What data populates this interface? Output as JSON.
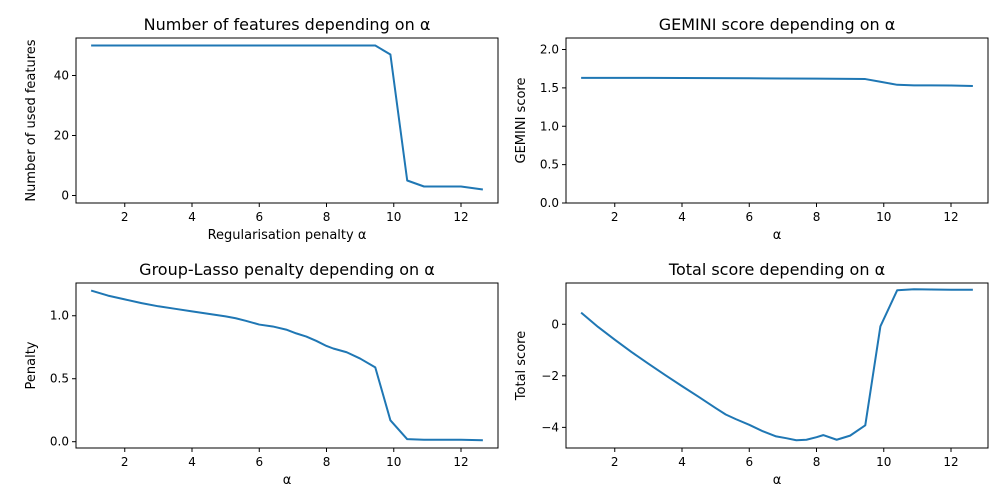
{
  "chart_data": [
    {
      "type": "line",
      "title": "Number of features depending on α",
      "xlabel": "Regularisation penalty α",
      "ylabel": "Number of used features",
      "xlim": [
        0.55,
        13.1
      ],
      "ylim": [
        -2.5,
        52.5
      ],
      "xticks": [
        2,
        4,
        6,
        8,
        10,
        12
      ],
      "yticks": [
        0,
        20,
        40
      ],
      "x": [
        1.0,
        1.5,
        2.0,
        2.5,
        3.0,
        3.5,
        4.0,
        4.5,
        5.0,
        5.5,
        6.0,
        6.5,
        7.0,
        7.5,
        8.0,
        8.5,
        9.0,
        9.45,
        9.9,
        10.4,
        10.9,
        11.4,
        12.0,
        12.65
      ],
      "series": [
        {
          "name": "",
          "values": [
            50,
            50,
            50,
            50,
            50,
            50,
            50,
            50,
            50,
            50,
            50,
            50,
            50,
            50,
            50,
            50,
            50,
            50,
            47,
            5,
            3,
            3,
            3,
            2
          ]
        }
      ]
    },
    {
      "type": "line",
      "title": "GEMINI score depending on α",
      "xlabel": "α",
      "ylabel": "GEMINI score",
      "xlim": [
        0.55,
        13.1
      ],
      "ylim": [
        0.0,
        2.15
      ],
      "xticks": [
        2,
        4,
        6,
        8,
        10,
        12
      ],
      "yticks": [
        0.0,
        0.5,
        1.0,
        1.5,
        2.0
      ],
      "yticklabels": [
        "0.0",
        "0.5",
        "1.0",
        "1.5",
        "2.0"
      ],
      "x": [
        1.0,
        2.0,
        3.0,
        4.0,
        5.0,
        6.0,
        7.0,
        8.0,
        9.0,
        9.45,
        9.9,
        10.4,
        10.9,
        11.4,
        12.0,
        12.65
      ],
      "series": [
        {
          "name": "",
          "values": [
            1.63,
            1.63,
            1.63,
            1.628,
            1.627,
            1.625,
            1.623,
            1.62,
            1.617,
            1.615,
            1.58,
            1.54,
            1.533,
            1.532,
            1.531,
            1.525
          ]
        }
      ]
    },
    {
      "type": "line",
      "title": "Group-Lasso penalty depending on α",
      "xlabel": "α",
      "ylabel": "Penalty",
      "xlim": [
        0.55,
        13.1
      ],
      "ylim": [
        -0.05,
        1.26
      ],
      "xticks": [
        2,
        4,
        6,
        8,
        10,
        12
      ],
      "yticks": [
        0.0,
        0.5,
        1.0
      ],
      "yticklabels": [
        "0.0",
        "0.5",
        "1.0"
      ],
      "x": [
        1.0,
        1.5,
        2.0,
        2.5,
        3.0,
        3.5,
        4.0,
        4.5,
        5.0,
        5.3,
        5.6,
        6.0,
        6.4,
        6.8,
        7.1,
        7.4,
        7.7,
        8.0,
        8.2,
        8.6,
        9.0,
        9.45,
        9.9,
        10.4,
        10.9,
        11.4,
        12.0,
        12.65
      ],
      "series": [
        {
          "name": "",
          "values": [
            1.2,
            1.16,
            1.13,
            1.1,
            1.075,
            1.055,
            1.035,
            1.015,
            0.995,
            0.98,
            0.96,
            0.93,
            0.915,
            0.89,
            0.86,
            0.835,
            0.8,
            0.76,
            0.74,
            0.71,
            0.66,
            0.59,
            0.17,
            0.02,
            0.015,
            0.015,
            0.015,
            0.012
          ]
        }
      ]
    },
    {
      "type": "line",
      "title": "Total score depending on α",
      "xlabel": "α",
      "ylabel": "Total score",
      "xlim": [
        0.55,
        13.1
      ],
      "ylim": [
        -4.8,
        1.6
      ],
      "xticks": [
        2,
        4,
        6,
        8,
        10,
        12
      ],
      "yticks": [
        -4,
        -2,
        0
      ],
      "yticklabels": [
        "−4",
        "−2",
        "0"
      ],
      "x": [
        1.0,
        1.5,
        2.0,
        2.5,
        3.0,
        3.5,
        4.0,
        4.5,
        5.0,
        5.3,
        5.6,
        6.0,
        6.4,
        6.8,
        7.1,
        7.4,
        7.7,
        8.0,
        8.2,
        8.6,
        9.0,
        9.45,
        9.9,
        10.4,
        10.9,
        11.4,
        12.0,
        12.65
      ],
      "series": [
        {
          "name": "",
          "values": [
            0.45,
            -0.1,
            -0.6,
            -1.08,
            -1.53,
            -1.97,
            -2.4,
            -2.82,
            -3.25,
            -3.5,
            -3.68,
            -3.9,
            -4.15,
            -4.35,
            -4.42,
            -4.5,
            -4.48,
            -4.38,
            -4.3,
            -4.48,
            -4.32,
            -3.92,
            -0.08,
            1.32,
            1.36,
            1.35,
            1.34,
            1.34
          ]
        }
      ]
    }
  ]
}
